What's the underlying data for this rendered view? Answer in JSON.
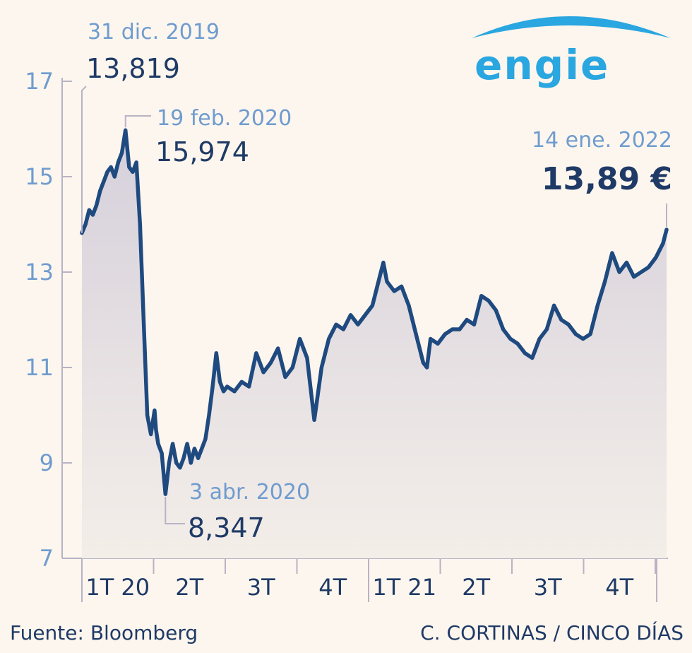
{
  "chart_data": {
    "type": "area",
    "title": "",
    "xlabel": "",
    "ylabel": "",
    "ylim": [
      7,
      17
    ],
    "yticks": [
      7,
      9,
      11,
      13,
      15,
      17
    ],
    "ytick_labels": [
      "7",
      "9",
      "11",
      "13",
      "15",
      "17"
    ],
    "x_range": [
      0,
      8.05
    ],
    "quarter_labels": [
      "1T 20",
      "2T",
      "3T",
      "4T",
      "1T 21",
      "2T",
      "3T",
      "4T"
    ],
    "series": [
      {
        "name": "Engie",
        "x": [
          0.0,
          0.05,
          0.1,
          0.15,
          0.2,
          0.25,
          0.3,
          0.35,
          0.4,
          0.45,
          0.5,
          0.55,
          0.6,
          0.65,
          0.7,
          0.75,
          0.8,
          0.85,
          0.9,
          0.95,
          1.0,
          1.02,
          1.05,
          1.1,
          1.15,
          1.2,
          1.25,
          1.3,
          1.35,
          1.4,
          1.45,
          1.5,
          1.55,
          1.6,
          1.7,
          1.75,
          1.8,
          1.85,
          1.9,
          1.95,
          2.0,
          2.1,
          2.2,
          2.3,
          2.4,
          2.5,
          2.6,
          2.7,
          2.8,
          2.9,
          3.0,
          3.1,
          3.2,
          3.3,
          3.4,
          3.5,
          3.6,
          3.7,
          3.8,
          3.9,
          4.0,
          4.1,
          4.15,
          4.2,
          4.3,
          4.4,
          4.5,
          4.6,
          4.7,
          4.75,
          4.8,
          4.9,
          5.0,
          5.1,
          5.2,
          5.3,
          5.4,
          5.5,
          5.6,
          5.7,
          5.8,
          5.9,
          6.0,
          6.1,
          6.2,
          6.3,
          6.4,
          6.5,
          6.6,
          6.7,
          6.8,
          6.9,
          7.0,
          7.1,
          7.2,
          7.3,
          7.4,
          7.5,
          7.6,
          7.7,
          7.8,
          7.9,
          8.0,
          8.05
        ],
        "values": [
          13.819,
          14.0,
          14.3,
          14.2,
          14.4,
          14.7,
          14.9,
          15.1,
          15.2,
          15.0,
          15.3,
          15.5,
          15.974,
          15.2,
          15.1,
          15.3,
          14.0,
          12.0,
          10.0,
          9.6,
          10.1,
          9.7,
          9.4,
          9.2,
          8.347,
          9.0,
          9.4,
          9.0,
          8.9,
          9.1,
          9.4,
          9.0,
          9.3,
          9.1,
          9.5,
          10.0,
          10.6,
          11.3,
          10.7,
          10.5,
          10.6,
          10.5,
          10.7,
          10.6,
          11.3,
          10.9,
          11.1,
          11.4,
          10.8,
          11.0,
          11.6,
          11.2,
          9.9,
          11.0,
          11.6,
          11.9,
          11.8,
          12.1,
          11.9,
          12.1,
          12.3,
          12.9,
          13.2,
          12.8,
          12.6,
          12.7,
          12.3,
          11.7,
          11.1,
          11.0,
          11.6,
          11.5,
          11.7,
          11.8,
          11.8,
          12.0,
          11.9,
          12.5,
          12.4,
          12.2,
          11.8,
          11.6,
          11.5,
          11.3,
          11.2,
          11.6,
          11.8,
          12.3,
          12.0,
          11.9,
          11.7,
          11.6,
          11.7,
          12.3,
          12.8,
          13.4,
          13.0,
          13.2,
          12.9,
          13.0,
          13.1,
          13.3,
          13.6,
          13.89
        ]
      }
    ],
    "annotations": [
      {
        "date": "31 dic. 2019",
        "value": "13,819",
        "x": 0.0,
        "y": 13.819
      },
      {
        "date": "19 feb. 2020",
        "value": "15,974",
        "x": 0.6,
        "y": 15.974
      },
      {
        "date": "3 abr. 2020",
        "value": "8,347",
        "x": 1.15,
        "y": 8.347
      },
      {
        "date": "14 ene. 2022",
        "value": "13,89 €",
        "x": 8.05,
        "y": 13.89
      }
    ]
  },
  "brand": {
    "name": "engie"
  },
  "footer": {
    "source": "Fuente: Bloomberg",
    "credit": "C. CORTINAS / CINCO DÍAS"
  },
  "colors": {
    "line": "#1f4a80",
    "area": "#d9d6dd",
    "axis": "#b8b3c4",
    "label": "#6f9ccf",
    "brand": "#2aa6e0"
  }
}
